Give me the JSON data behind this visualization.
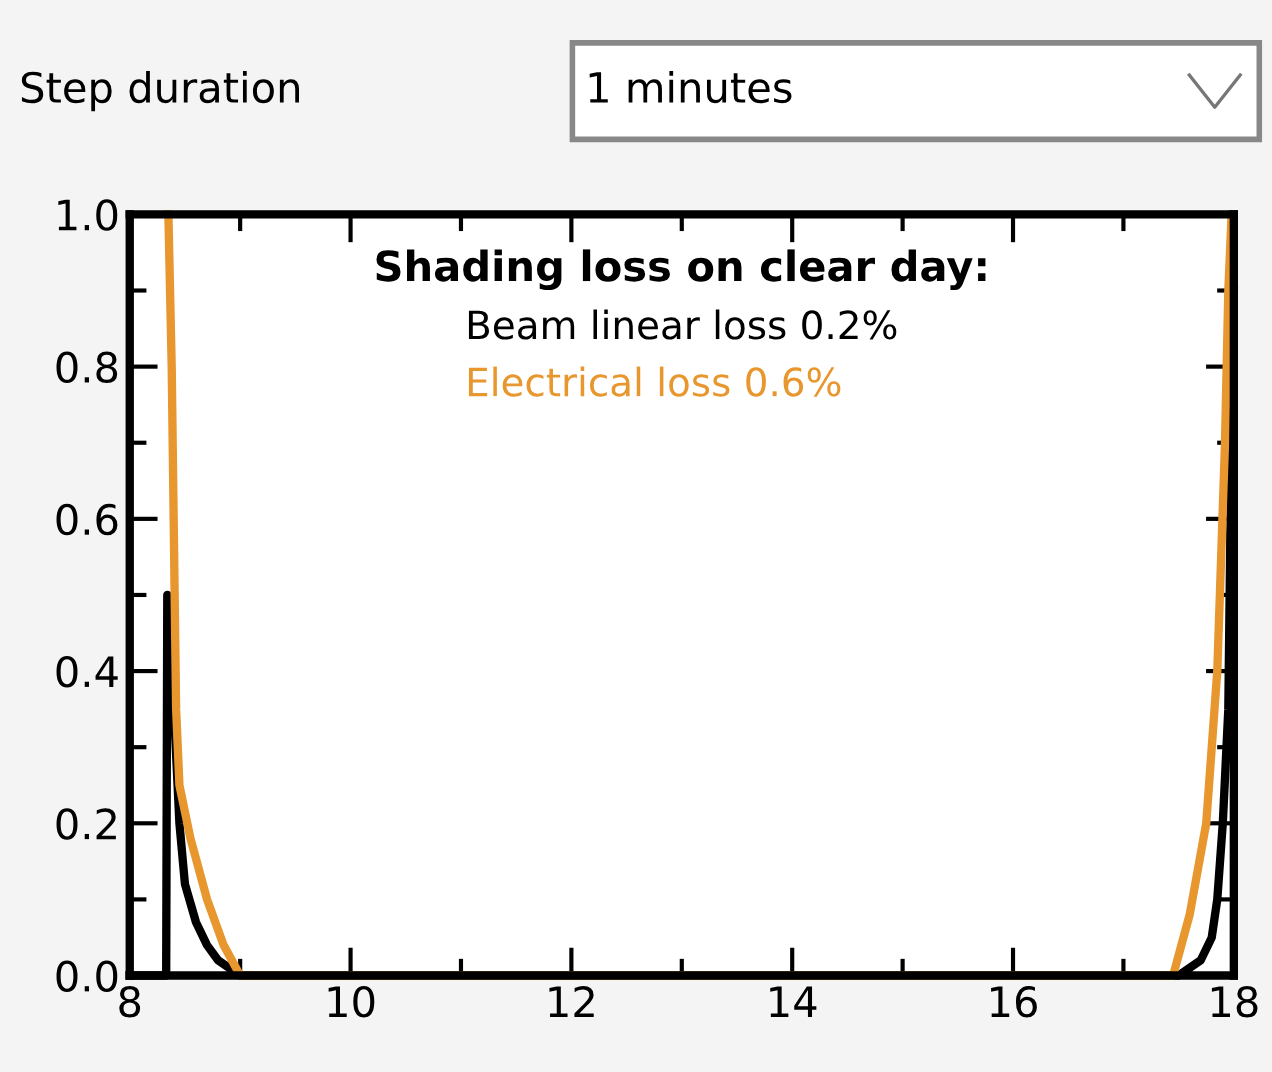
{
  "chart_data": {
    "type": "line",
    "legend_title": "Shading loss on clear day:",
    "legend": "top",
    "series": [
      {
        "name": "Beam linear loss 0.2%",
        "color": "#000000",
        "x": [
          8.0,
          8.33,
          8.34,
          8.4,
          8.45,
          8.5,
          8.6,
          8.7,
          8.8,
          9.0,
          17.5,
          17.7,
          17.8,
          17.85,
          17.9,
          17.95,
          17.97,
          18.0
        ],
        "values": [
          0,
          0,
          0.5,
          0.35,
          0.2,
          0.12,
          0.07,
          0.04,
          0.02,
          0,
          0,
          0.02,
          0.05,
          0.1,
          0.2,
          0.35,
          0.6,
          0.9
        ]
      },
      {
        "name": "Electrical loss 0.6%",
        "color": "#e8962e",
        "x": [
          8.35,
          8.38,
          8.42,
          8.45,
          8.55,
          8.7,
          8.85,
          9.0,
          17.45,
          17.6,
          17.75,
          17.85,
          17.92,
          17.95,
          17.98
        ],
        "values": [
          1.0,
          0.8,
          0.35,
          0.25,
          0.18,
          0.1,
          0.04,
          0,
          0,
          0.08,
          0.2,
          0.4,
          0.7,
          0.9,
          1.0
        ]
      }
    ],
    "xlim": [
      8,
      18
    ],
    "xticks": [
      8,
      10,
      12,
      14,
      16,
      18
    ],
    "ylim": [
      0,
      1
    ],
    "yticks": [
      {
        "value": 0,
        "label": "0.0"
      },
      {
        "value": 0.2,
        "label": "0.2"
      },
      {
        "value": 0.4,
        "label": "0.4"
      },
      {
        "value": 0.6,
        "label": "0.6"
      },
      {
        "value": 0.8,
        "label": "0.8"
      },
      {
        "value": 1,
        "label": "1.0"
      }
    ],
    "grid": false,
    "annotations": [
      "Step duration",
      "1 minutes"
    ]
  }
}
